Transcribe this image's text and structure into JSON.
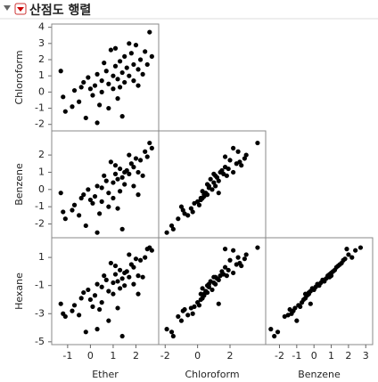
{
  "chart_data": {
    "type": "scatter_matrix",
    "title": "산점도 행렬",
    "color": "#000000",
    "variables": [
      {
        "name": "Ether",
        "lim": [
          -1.7,
          3.0
        ],
        "xticks": [
          -1,
          0,
          1,
          2
        ],
        "values": [
          -1.3,
          -1.2,
          -1.1,
          -0.8,
          -0.7,
          -0.5,
          -0.4,
          -0.3,
          -0.2,
          -0.1,
          0.0,
          0.1,
          0.2,
          0.3,
          0.4,
          0.5,
          0.5,
          0.6,
          0.7,
          0.8,
          0.8,
          0.9,
          1.0,
          1.0,
          1.1,
          1.1,
          1.2,
          1.2,
          1.3,
          1.3,
          1.4,
          1.4,
          1.5,
          1.5,
          1.6,
          1.7,
          1.7,
          1.8,
          1.9,
          1.9,
          2.0,
          2.1,
          2.1,
          2.2,
          2.3,
          2.4,
          2.5,
          2.6,
          2.7,
          0.3
        ]
      },
      {
        "name": "Chloroform",
        "lim": [
          -2.4,
          4.2
        ],
        "xticks": [
          -2,
          0,
          2
        ],
        "yticks": [
          -2,
          -1,
          0,
          1,
          2,
          3,
          4
        ],
        "values": [
          1.3,
          -0.3,
          -1.2,
          -0.9,
          0.1,
          -0.6,
          0.3,
          0.6,
          -1.6,
          0.9,
          0.2,
          -0.2,
          0.4,
          1.1,
          -0.8,
          0.0,
          0.7,
          1.8,
          1.3,
          -1.0,
          0.5,
          2.6,
          1.0,
          0.2,
          2.7,
          1.6,
          -0.4,
          0.8,
          1.9,
          0.3,
          -1.5,
          1.2,
          2.2,
          0.6,
          1.5,
          3.0,
          1.0,
          2.4,
          0.7,
          1.7,
          2.9,
          1.4,
          0.4,
          2.0,
          1.1,
          2.5,
          1.7,
          3.7,
          2.2,
          -1.9
        ]
      },
      {
        "name": "Benzene",
        "lim": [
          -2.8,
          3.4
        ],
        "xticks": [
          -2,
          -1,
          0,
          1,
          2,
          3
        ],
        "yticks": [
          -2,
          -1,
          0,
          1,
          2
        ],
        "values": [
          -0.2,
          -1.3,
          -1.7,
          -1.2,
          -0.9,
          -1.5,
          -0.5,
          -0.3,
          -2.1,
          0.0,
          -0.6,
          -0.8,
          -0.4,
          0.2,
          -1.4,
          -0.7,
          0.1,
          0.8,
          0.5,
          -1.0,
          -0.2,
          1.6,
          0.4,
          -0.5,
          1.4,
          0.9,
          -1.1,
          0.6,
          1.2,
          -0.1,
          -2.3,
          0.7,
          1.0,
          0.3,
          1.1,
          2.0,
          0.9,
          1.5,
          0.2,
          1.3,
          1.8,
          1.0,
          -0.3,
          1.7,
          0.8,
          2.2,
          1.9,
          2.7,
          2.4,
          -2.5
        ]
      },
      {
        "name": "Hexane",
        "lim": [
          -5.2,
          2.4
        ],
        "yticks": [
          -5,
          -3,
          -1,
          1
        ],
        "values": [
          -2.3,
          -3.0,
          -3.2,
          -2.8,
          -2.4,
          -3.1,
          -1.9,
          -1.5,
          -4.3,
          -1.3,
          -2.0,
          -2.5,
          -1.7,
          -0.9,
          -2.7,
          -2.2,
          -1.1,
          -0.3,
          -0.6,
          -3.5,
          -1.4,
          0.6,
          -0.8,
          -1.6,
          0.4,
          -0.2,
          -2.6,
          -0.7,
          0.1,
          -1.2,
          -4.6,
          -0.5,
          -0.1,
          -1.0,
          0.0,
          1.2,
          -0.4,
          0.5,
          -0.9,
          0.3,
          0.9,
          -0.3,
          -1.6,
          0.8,
          -0.4,
          1.0,
          1.6,
          1.7,
          1.5,
          -4.1
        ]
      }
    ]
  }
}
